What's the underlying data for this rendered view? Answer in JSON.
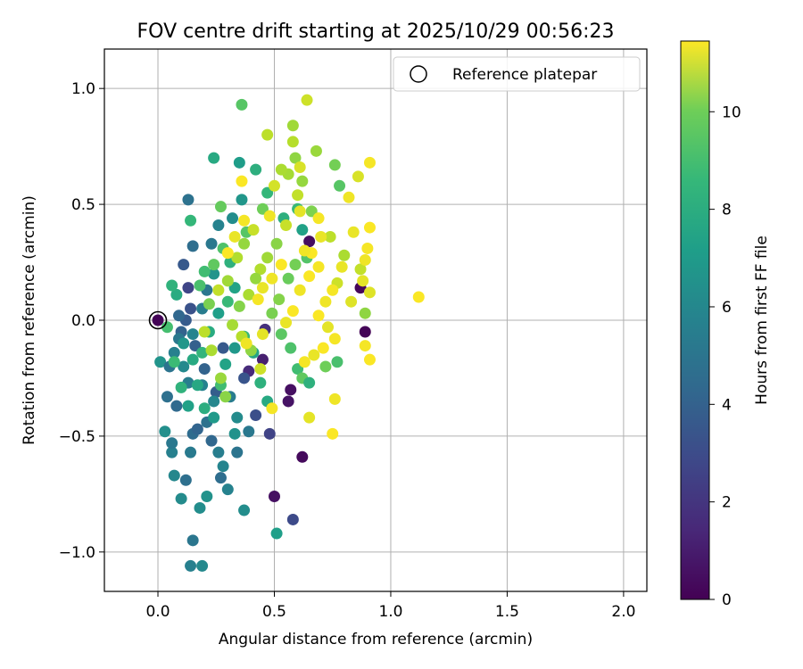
{
  "chart_data": {
    "type": "scatter",
    "title": "FOV centre drift starting at 2025/10/29 00:56:23",
    "xlabel": "Angular distance from reference (arcmin)",
    "ylabel": "Rotation from reference (arcmin)",
    "xlim": [
      -0.23,
      2.1
    ],
    "ylim": [
      -1.17,
      1.17
    ],
    "grid": true,
    "xticks": [
      0.0,
      0.5,
      1.0,
      1.5,
      2.0
    ],
    "xtick_labels": [
      "0.0",
      "0.5",
      "1.0",
      "1.5",
      "2.0"
    ],
    "yticks": [
      1.0,
      0.5,
      0.0,
      -0.5,
      -1.0
    ],
    "ytick_labels": [
      "1.0",
      "0.5",
      "0.0",
      "−0.5",
      "−1.0"
    ],
    "legend": {
      "label": "Reference platepar",
      "position": "top-right"
    },
    "reference_point": {
      "x": 0.0,
      "y": 0.0
    },
    "colorbar": {
      "label": "Hours from first FF file",
      "range": [
        0,
        11.45
      ],
      "ticks": [
        0,
        2,
        4,
        6,
        8,
        10
      ],
      "tick_labels": [
        "0",
        "2",
        "4",
        "6",
        "8",
        "10"
      ],
      "colormap": "viridis"
    },
    "points": [
      [
        0.0,
        0.0,
        0.1
      ],
      [
        0.89,
        -0.05,
        0.1
      ],
      [
        0.87,
        0.14,
        0.2
      ],
      [
        0.62,
        -0.59,
        0.3
      ],
      [
        0.5,
        -0.76,
        0.5
      ],
      [
        0.57,
        -0.3,
        0.5
      ],
      [
        0.56,
        -0.35,
        0.6
      ],
      [
        0.65,
        0.34,
        0.4
      ],
      [
        0.45,
        -0.17,
        1.0
      ],
      [
        0.39,
        -0.22,
        1.4
      ],
      [
        0.46,
        -0.04,
        1.6
      ],
      [
        0.58,
        -0.86,
        2.6
      ],
      [
        0.48,
        -0.49,
        2.3
      ],
      [
        0.42,
        -0.41,
        2.8
      ],
      [
        0.37,
        -0.25,
        3.0
      ],
      [
        0.28,
        -0.12,
        3.2
      ],
      [
        0.25,
        -0.31,
        3.4
      ],
      [
        0.2,
        -0.21,
        3.6
      ],
      [
        0.16,
        -0.11,
        3.5
      ],
      [
        0.13,
        0.14,
        2.4
      ],
      [
        0.11,
        0.24,
        3.2
      ],
      [
        0.14,
        0.05,
        2.9
      ],
      [
        0.12,
        0.0,
        3.3
      ],
      [
        0.1,
        -0.05,
        3.6
      ],
      [
        0.09,
        0.02,
        3.8
      ],
      [
        0.13,
        0.52,
        4.3
      ],
      [
        0.15,
        0.32,
        4.1
      ],
      [
        0.12,
        -0.69,
        4.2
      ],
      [
        0.15,
        -0.95,
        4.5
      ],
      [
        0.14,
        -1.06,
        5.0
      ],
      [
        0.19,
        -1.06,
        5.4
      ],
      [
        0.21,
        -0.76,
        5.8
      ],
      [
        0.18,
        -0.81,
        5.6
      ],
      [
        0.1,
        -0.77,
        5.5
      ],
      [
        0.07,
        -0.67,
        5.3
      ],
      [
        0.06,
        -0.57,
        5.0
      ],
      [
        0.06,
        -0.53,
        4.6
      ],
      [
        0.03,
        -0.48,
        5.7
      ],
      [
        0.01,
        -0.18,
        5.9
      ],
      [
        0.04,
        -0.33,
        4.2
      ],
      [
        0.05,
        -0.2,
        4.4
      ],
      [
        0.08,
        -0.37,
        3.9
      ],
      [
        0.15,
        -0.49,
        4.0
      ],
      [
        0.14,
        -0.57,
        4.7
      ],
      [
        0.17,
        -0.47,
        3.7
      ],
      [
        0.21,
        -0.44,
        4.3
      ],
      [
        0.23,
        -0.52,
        3.8
      ],
      [
        0.26,
        -0.57,
        4.9
      ],
      [
        0.27,
        -0.68,
        4.1
      ],
      [
        0.3,
        -0.73,
        5.1
      ],
      [
        0.28,
        -0.63,
        5.2
      ],
      [
        0.34,
        -0.57,
        4.4
      ],
      [
        0.37,
        -0.82,
        5.6
      ],
      [
        0.33,
        -0.49,
        5.8
      ],
      [
        0.39,
        -0.48,
        4.6
      ],
      [
        0.31,
        -0.33,
        4.8
      ],
      [
        0.34,
        -0.42,
        5.5
      ],
      [
        0.24,
        -0.35,
        5.3
      ],
      [
        0.19,
        -0.28,
        5.1
      ],
      [
        0.13,
        -0.27,
        4.9
      ],
      [
        0.11,
        -0.2,
        5.4
      ],
      [
        0.07,
        -0.14,
        5.0
      ],
      [
        0.09,
        -0.08,
        4.6
      ],
      [
        0.15,
        -0.06,
        5.2
      ],
      [
        0.19,
        0.05,
        4.8
      ],
      [
        0.21,
        0.13,
        4.5
      ],
      [
        0.24,
        0.2,
        5.9
      ],
      [
        0.23,
        0.33,
        4.6
      ],
      [
        0.26,
        0.41,
        5.1
      ],
      [
        0.32,
        0.44,
        5.6
      ],
      [
        0.36,
        0.52,
        6.0
      ],
      [
        0.35,
        0.68,
        6.3
      ],
      [
        0.24,
        0.7,
        6.9
      ],
      [
        0.42,
        0.65,
        7.2
      ],
      [
        0.36,
        0.93,
        8.4
      ],
      [
        0.51,
        -0.92,
        6.4
      ],
      [
        0.47,
        -0.35,
        6.9
      ],
      [
        0.44,
        -0.27,
        7.3
      ],
      [
        0.41,
        -0.14,
        6.7
      ],
      [
        0.37,
        -0.07,
        7.6
      ],
      [
        0.33,
        -0.12,
        6.1
      ],
      [
        0.29,
        -0.19,
        6.6
      ],
      [
        0.27,
        -0.28,
        7.9
      ],
      [
        0.24,
        -0.42,
        6.2
      ],
      [
        0.2,
        -0.38,
        7.1
      ],
      [
        0.17,
        -0.28,
        6.8
      ],
      [
        0.13,
        -0.37,
        6.5
      ],
      [
        0.1,
        -0.29,
        7.4
      ],
      [
        0.07,
        -0.18,
        7.8
      ],
      [
        0.11,
        -0.1,
        6.0
      ],
      [
        0.15,
        -0.17,
        6.9
      ],
      [
        0.19,
        -0.14,
        7.5
      ],
      [
        0.22,
        -0.05,
        7.0
      ],
      [
        0.26,
        0.03,
        6.4
      ],
      [
        0.3,
        0.08,
        7.7
      ],
      [
        0.33,
        0.14,
        6.6
      ],
      [
        0.31,
        0.25,
        7.3
      ],
      [
        0.28,
        0.31,
        8.2
      ],
      [
        0.24,
        0.24,
        8.6
      ],
      [
        0.2,
        0.21,
        7.9
      ],
      [
        0.18,
        0.15,
        8.1
      ],
      [
        0.14,
        0.43,
        7.6
      ],
      [
        0.08,
        0.11,
        7.0
      ],
      [
        0.06,
        0.15,
        7.4
      ],
      [
        0.04,
        -0.03,
        8.0
      ],
      [
        0.27,
        0.49,
        8.7
      ],
      [
        0.38,
        0.38,
        8.4
      ],
      [
        0.45,
        0.48,
        8.9
      ],
      [
        0.47,
        0.55,
        7.6
      ],
      [
        0.54,
        0.44,
        7.2
      ],
      [
        0.6,
        0.48,
        7.7
      ],
      [
        0.62,
        0.39,
        6.5
      ],
      [
        0.64,
        0.27,
        8.3
      ],
      [
        0.59,
        0.24,
        9.0
      ],
      [
        0.56,
        0.18,
        8.8
      ],
      [
        0.52,
        0.09,
        9.3
      ],
      [
        0.49,
        0.03,
        9.1
      ],
      [
        0.53,
        -0.06,
        8.5
      ],
      [
        0.57,
        -0.12,
        8.2
      ],
      [
        0.6,
        -0.21,
        7.9
      ],
      [
        0.62,
        -0.25,
        8.6
      ],
      [
        0.65,
        -0.27,
        7.3
      ],
      [
        0.72,
        -0.2,
        8.9
      ],
      [
        0.77,
        -0.18,
        8.1
      ],
      [
        0.76,
        0.67,
        9.0
      ],
      [
        0.78,
        0.58,
        8.4
      ],
      [
        0.68,
        0.73,
        9.7
      ],
      [
        0.58,
        0.84,
        9.8
      ],
      [
        0.47,
        0.8,
        10.3
      ],
      [
        0.64,
        0.95,
        10.6
      ],
      [
        0.58,
        0.77,
        10.2
      ],
      [
        0.59,
        0.7,
        9.5
      ],
      [
        0.56,
        0.63,
        9.9
      ],
      [
        0.62,
        0.6,
        9.6
      ],
      [
        0.6,
        0.54,
        10.4
      ],
      [
        0.66,
        0.47,
        9.2
      ],
      [
        0.55,
        0.41,
        10.5
      ],
      [
        0.51,
        0.33,
        9.4
      ],
      [
        0.47,
        0.27,
        9.8
      ],
      [
        0.44,
        0.22,
        10.1
      ],
      [
        0.42,
        0.18,
        9.6
      ],
      [
        0.39,
        0.11,
        10.0
      ],
      [
        0.35,
        0.06,
        9.3
      ],
      [
        0.32,
        -0.02,
        9.9
      ],
      [
        0.36,
        -0.07,
        10.2
      ],
      [
        0.4,
        -0.13,
        9.5
      ],
      [
        0.44,
        -0.21,
        10.6
      ],
      [
        0.29,
        -0.33,
        9.4
      ],
      [
        0.27,
        -0.25,
        9.7
      ],
      [
        0.23,
        -0.13,
        10.0
      ],
      [
        0.2,
        -0.05,
        10.3
      ],
      [
        0.22,
        0.07,
        9.1
      ],
      [
        0.26,
        0.13,
        10.4
      ],
      [
        0.3,
        0.17,
        9.8
      ],
      [
        0.34,
        0.27,
        10.1
      ],
      [
        0.37,
        0.33,
        9.6
      ],
      [
        0.41,
        0.39,
        10.5
      ],
      [
        0.5,
        0.58,
        10.7
      ],
      [
        0.53,
        0.65,
        10.0
      ],
      [
        0.61,
        0.66,
        10.8
      ],
      [
        0.74,
        0.36,
        10.3
      ],
      [
        0.8,
        0.28,
        10.0
      ],
      [
        0.77,
        0.16,
        10.6
      ],
      [
        0.83,
        0.08,
        10.9
      ],
      [
        0.87,
        0.22,
        10.4
      ],
      [
        0.89,
        0.03,
        9.5
      ],
      [
        0.84,
        0.38,
        11.1
      ],
      [
        0.82,
        0.53,
        11.2
      ],
      [
        0.86,
        0.62,
        10.8
      ],
      [
        0.91,
        0.68,
        11.3
      ],
      [
        0.91,
        0.4,
        11.4
      ],
      [
        0.9,
        0.31,
        11.3
      ],
      [
        0.89,
        0.26,
        11.2
      ],
      [
        0.88,
        0.17,
        11.0
      ],
      [
        0.91,
        0.12,
        10.9
      ],
      [
        0.91,
        -0.17,
        11.4
      ],
      [
        0.89,
        -0.11,
        11.3
      ],
      [
        1.12,
        0.1,
        11.4
      ],
      [
        0.79,
        0.23,
        11.1
      ],
      [
        0.75,
        0.13,
        11.3
      ],
      [
        0.72,
        0.08,
        11.2
      ],
      [
        0.69,
        0.02,
        11.4
      ],
      [
        0.73,
        -0.03,
        11.0
      ],
      [
        0.76,
        -0.08,
        11.3
      ],
      [
        0.71,
        -0.12,
        11.4
      ],
      [
        0.67,
        -0.15,
        11.1
      ],
      [
        0.63,
        -0.18,
        11.3
      ],
      [
        0.65,
        -0.42,
        11.0
      ],
      [
        0.75,
        -0.49,
        11.4
      ],
      [
        0.76,
        -0.34,
        11.2
      ],
      [
        0.49,
        -0.38,
        11.3
      ],
      [
        0.55,
        -0.01,
        11.1
      ],
      [
        0.58,
        0.04,
        11.4
      ],
      [
        0.61,
        0.13,
        11.2
      ],
      [
        0.65,
        0.19,
        11.4
      ],
      [
        0.69,
        0.23,
        11.3
      ],
      [
        0.7,
        0.36,
        11.1
      ],
      [
        0.66,
        0.29,
        11.4
      ],
      [
        0.63,
        0.3,
        11.2
      ],
      [
        0.69,
        0.44,
        11.3
      ],
      [
        0.61,
        0.47,
        11.0
      ],
      [
        0.53,
        0.24,
        11.4
      ],
      [
        0.49,
        0.18,
        11.2
      ],
      [
        0.45,
        0.14,
        11.1
      ],
      [
        0.43,
        0.09,
        11.3
      ],
      [
        0.48,
        0.45,
        11.2
      ],
      [
        0.36,
        0.6,
        11.4
      ],
      [
        0.37,
        0.43,
        11.3
      ],
      [
        0.33,
        0.36,
        11.1
      ],
      [
        0.3,
        0.29,
        11.4
      ],
      [
        0.45,
        -0.06,
        11.0
      ],
      [
        0.38,
        -0.1,
        11.2
      ]
    ]
  }
}
